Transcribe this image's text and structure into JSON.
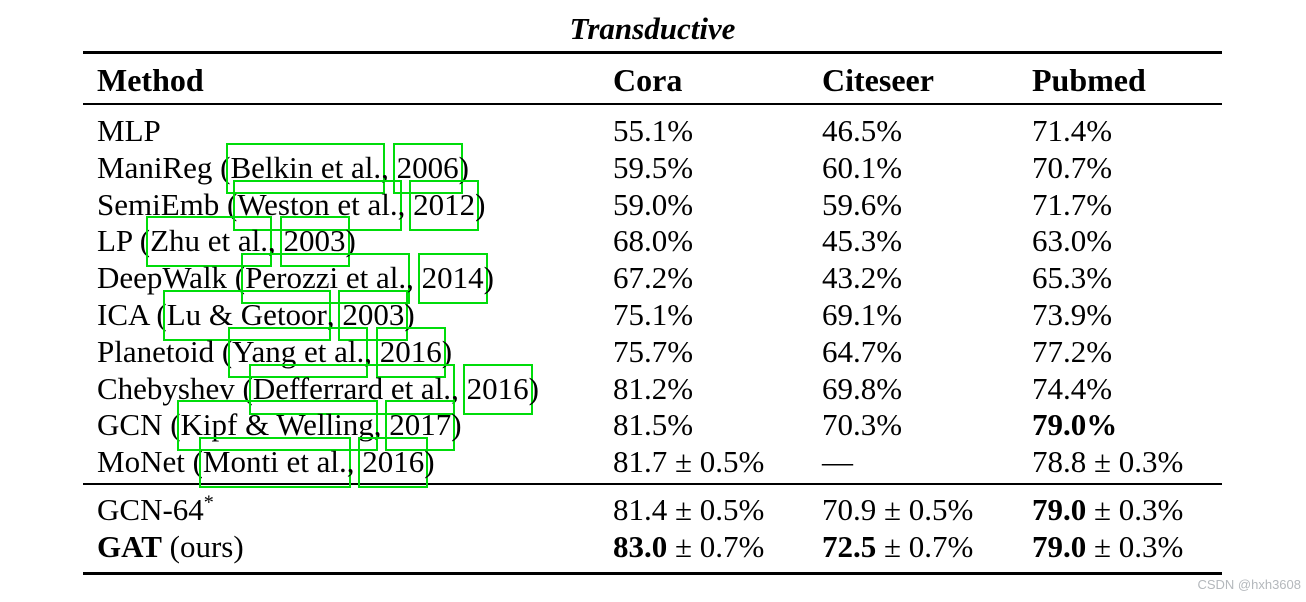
{
  "title": "Transductive",
  "colors": {
    "annotation_box_green": "#00dc0a",
    "rule_black": "#000000",
    "watermark_gray": "#b4b8bc"
  },
  "table": {
    "header": {
      "method": "Method",
      "cora": "Cora",
      "citeseer": "Citeseer",
      "pubmed": "Pubmed"
    },
    "rows": [
      {
        "method": {
          "pre": "MLP"
        },
        "cora": {
          "rest": "55.1%"
        },
        "citeseer": {
          "rest": "46.5%"
        },
        "pubmed": {
          "rest": "71.4%"
        }
      },
      {
        "method": {
          "pre": "ManiReg (",
          "cite": "Belkin et al.",
          "sep": ", ",
          "year": "2006",
          "post": ")"
        },
        "cora": {
          "rest": "59.5%"
        },
        "citeseer": {
          "rest": "60.1%"
        },
        "pubmed": {
          "rest": "70.7%"
        }
      },
      {
        "method": {
          "pre": "SemiEmb (",
          "cite": "Weston et al.",
          "sep": ", ",
          "year": "2012",
          "post": ")"
        },
        "cora": {
          "rest": "59.0%"
        },
        "citeseer": {
          "rest": "59.6%"
        },
        "pubmed": {
          "rest": "71.7%"
        }
      },
      {
        "method": {
          "pre": "LP (",
          "cite": "Zhu et al.",
          "sep": ", ",
          "year": "2003",
          "post": ")"
        },
        "cora": {
          "rest": "68.0%"
        },
        "citeseer": {
          "rest": "45.3%"
        },
        "pubmed": {
          "rest": "63.0%"
        }
      },
      {
        "method": {
          "pre": "DeepWalk (",
          "cite": "Perozzi et al.",
          "sep": ", ",
          "year": "2014",
          "post": ")"
        },
        "cora": {
          "rest": "67.2%"
        },
        "citeseer": {
          "rest": "43.2%"
        },
        "pubmed": {
          "rest": "65.3%"
        }
      },
      {
        "method": {
          "pre": "ICA (",
          "cite": "Lu & Getoor",
          "sep": ", ",
          "year": "2003",
          "post": ")"
        },
        "cora": {
          "rest": "75.1%"
        },
        "citeseer": {
          "rest": "69.1%"
        },
        "pubmed": {
          "rest": "73.9%"
        }
      },
      {
        "method": {
          "pre": "Planetoid (",
          "cite": "Yang et al.",
          "sep": ", ",
          "year": "2016",
          "post": ")"
        },
        "cora": {
          "rest": "75.7%"
        },
        "citeseer": {
          "rest": "64.7%"
        },
        "pubmed": {
          "rest": "77.2%"
        }
      },
      {
        "method": {
          "pre": "Chebyshev (",
          "cite": "Defferrard et al.",
          "sep": ", ",
          "year": "2016",
          "post": ")"
        },
        "cora": {
          "rest": "81.2%"
        },
        "citeseer": {
          "rest": "69.8%"
        },
        "pubmed": {
          "rest": "74.4%"
        }
      },
      {
        "method": {
          "pre": "GCN (",
          "cite": "Kipf & Welling",
          "sep": ", ",
          "year": "2017",
          "post": ")"
        },
        "cora": {
          "rest": "81.5%"
        },
        "citeseer": {
          "rest": "70.3%"
        },
        "pubmed": {
          "bold": "79.0%"
        }
      },
      {
        "method": {
          "pre": "MoNet (",
          "cite": "Monti et al.",
          "sep": ", ",
          "year": "2016",
          "post": ")"
        },
        "cora": {
          "rest": "81.7 ± 0.5%"
        },
        "citeseer": {
          "rest": "—"
        },
        "pubmed": {
          "rest": "78.8 ± 0.3%"
        }
      }
    ],
    "rows2": [
      {
        "method": {
          "pre": "GCN-64",
          "sup": "*"
        },
        "cora": {
          "rest": "81.4 ± 0.5%"
        },
        "citeseer": {
          "rest": "70.9 ± 0.5%"
        },
        "pubmed": {
          "bold": "79.0",
          "rest": " ± 0.3%"
        }
      },
      {
        "method": {
          "bold": "GAT",
          "pre": " (ours)"
        },
        "cora": {
          "bold": "83.0",
          "rest": " ± 0.7%"
        },
        "citeseer": {
          "bold": "72.5",
          "rest": " ± 0.7%"
        },
        "pubmed": {
          "bold": "79.0",
          "rest": " ± 0.3%"
        }
      }
    ]
  },
  "watermark": "CSDN @hxh3608"
}
